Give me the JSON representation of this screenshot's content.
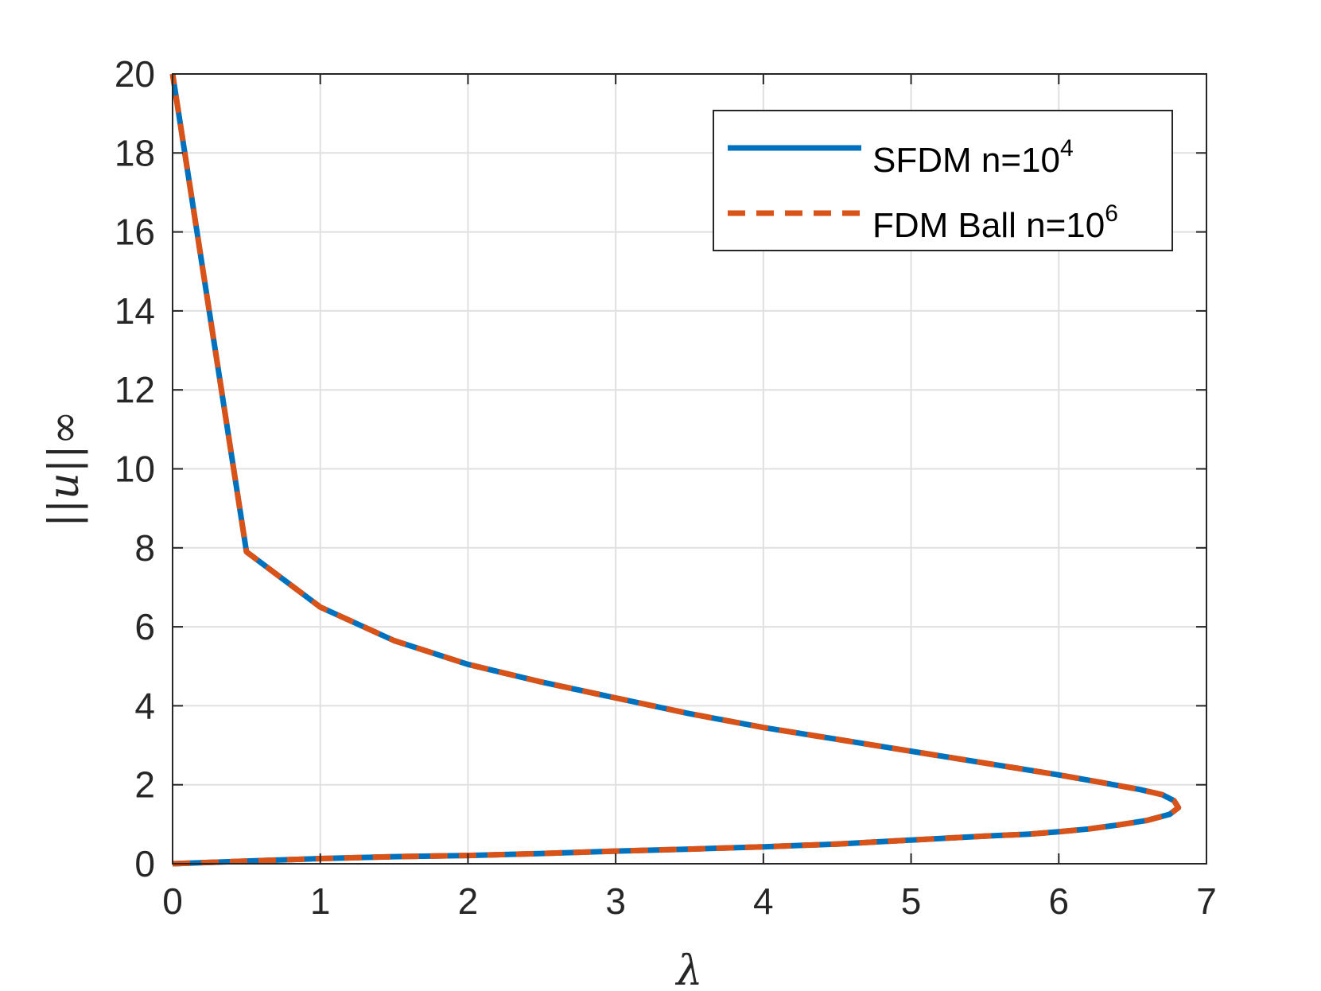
{
  "chart_data": {
    "type": "line",
    "title": "",
    "xlabel": "λ",
    "ylabel": "||u||∞",
    "xlim": [
      0,
      7
    ],
    "ylim": [
      0,
      20
    ],
    "xticks": [
      "0",
      "1",
      "2",
      "3",
      "4",
      "5",
      "6",
      "7"
    ],
    "yticks": [
      "0",
      "2",
      "4",
      "6",
      "8",
      "10",
      "12",
      "14",
      "16",
      "18",
      "20"
    ],
    "grid": true,
    "legend_position": "top-right",
    "series": [
      {
        "name": "SFDM n=10",
        "name_superscript": "4",
        "style": "solid",
        "color": "#0072BD",
        "x": [
          0.0,
          0.3,
          0.6,
          1.0,
          1.5,
          2.0,
          2.5,
          3.0,
          3.5,
          4.0,
          4.5,
          5.0,
          5.5,
          5.8,
          6.0,
          6.2,
          6.4,
          6.6,
          6.75,
          6.81,
          6.78,
          6.7,
          6.55,
          6.3,
          6.0,
          5.5,
          5.0,
          4.5,
          4.0,
          3.5,
          3.0,
          2.5,
          2.0,
          1.5,
          1.0,
          0.5,
          0.0
        ],
        "y": [
          0.0,
          0.04,
          0.08,
          0.13,
          0.18,
          0.21,
          0.26,
          0.32,
          0.37,
          0.43,
          0.5,
          0.6,
          0.7,
          0.75,
          0.81,
          0.88,
          0.98,
          1.1,
          1.25,
          1.42,
          1.6,
          1.75,
          1.88,
          2.05,
          2.25,
          2.55,
          2.85,
          3.15,
          3.45,
          3.8,
          4.2,
          4.6,
          5.05,
          5.65,
          6.5,
          7.9,
          20.0
        ]
      },
      {
        "name": "FDM Ball n=10",
        "name_superscript": "6",
        "style": "dashed",
        "color": "#D95319",
        "x": [
          0.0,
          0.3,
          0.6,
          1.0,
          1.5,
          2.0,
          2.5,
          3.0,
          3.5,
          4.0,
          4.5,
          5.0,
          5.5,
          5.8,
          6.0,
          6.2,
          6.4,
          6.6,
          6.75,
          6.81,
          6.78,
          6.7,
          6.55,
          6.3,
          6.0,
          5.5,
          5.0,
          4.5,
          4.0,
          3.5,
          3.0,
          2.5,
          2.0,
          1.5,
          1.0,
          0.5,
          0.0
        ],
        "y": [
          0.0,
          0.04,
          0.08,
          0.13,
          0.18,
          0.21,
          0.26,
          0.32,
          0.37,
          0.43,
          0.5,
          0.6,
          0.7,
          0.75,
          0.81,
          0.88,
          0.98,
          1.1,
          1.25,
          1.42,
          1.6,
          1.75,
          1.88,
          2.05,
          2.25,
          2.55,
          2.85,
          3.15,
          3.45,
          3.8,
          4.2,
          4.6,
          5.05,
          5.65,
          6.5,
          7.9,
          20.0
        ]
      }
    ]
  }
}
